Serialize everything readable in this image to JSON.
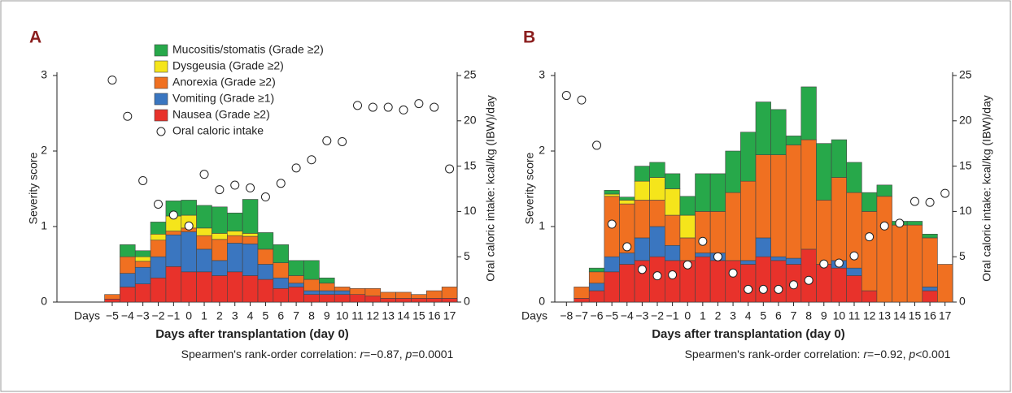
{
  "chart_data": [
    {
      "type": "stacked_bar",
      "panel_label": "A",
      "legend": true,
      "x_prefix": "Days",
      "x_label": "Days after transplantation (day 0)",
      "note": [
        "Spearmen's rank-order correlation: ",
        "r",
        "=−0.87, ",
        "p",
        "=0.0001"
      ],
      "y_label": "Severity score",
      "y2_label": "Oral caloric intake: kcal/kg (IBW)/day",
      "ylim": [
        0,
        3
      ],
      "yticks": [
        0,
        1,
        2,
        3
      ],
      "y2lim": [
        0,
        25
      ],
      "y2ticks": [
        0,
        5,
        10,
        15,
        20,
        25
      ],
      "categories": [
        null,
        null,
        null,
        "−5",
        "−4",
        "−3",
        "−2",
        "−1",
        "0",
        "1",
        "2",
        "3",
        "4",
        "5",
        "6",
        "7",
        "8",
        "9",
        "10",
        "11",
        "12",
        "13",
        "14",
        "15",
        "16",
        "17"
      ],
      "series": [
        {
          "name": "Nausea (Grade ≥2)",
          "color": "#e8322b",
          "values": [
            null,
            null,
            null,
            0.04,
            0.2,
            0.24,
            0.32,
            0.47,
            0.4,
            0.4,
            0.35,
            0.4,
            0.35,
            0.3,
            0.18,
            0.2,
            0.1,
            0.1,
            0.1,
            0.1,
            0.08,
            0.05,
            0.05,
            0.05,
            0.05,
            0.05
          ]
        },
        {
          "name": "Vomiting (Grade ≥1)",
          "color": "#3a76c0",
          "values": [
            null,
            null,
            null,
            0,
            0.18,
            0.22,
            0.28,
            0.42,
            0.53,
            0.3,
            0.2,
            0.38,
            0.42,
            0.2,
            0.14,
            0.05,
            0.05,
            0.05,
            0.05,
            0,
            0,
            0,
            0,
            0,
            0,
            0
          ]
        },
        {
          "name": "Anorexia (Grade ≥2)",
          "color": "#f07021",
          "values": [
            null,
            null,
            null,
            0.06,
            0.22,
            0.08,
            0.22,
            0.05,
            0.05,
            0.18,
            0.28,
            0.1,
            0.1,
            0.2,
            0.2,
            0.1,
            0.15,
            0.1,
            0.05,
            0.08,
            0.1,
            0.08,
            0.08,
            0.05,
            0.1,
            0.15
          ]
        },
        {
          "name": "Dysgeusia (Grade ≥2)",
          "color": "#f5e51b",
          "values": [
            null,
            null,
            null,
            0,
            0,
            0.06,
            0.08,
            0.2,
            0.17,
            0.1,
            0.08,
            0.06,
            0.04,
            0,
            0,
            0,
            0,
            0,
            0,
            0,
            0,
            0,
            0,
            0,
            0,
            0
          ]
        },
        {
          "name": "Mucositis/stomatis (Grade ≥2)",
          "color": "#27a84a",
          "values": [
            null,
            null,
            null,
            0,
            0.16,
            0.08,
            0.16,
            0.2,
            0.2,
            0.3,
            0.35,
            0.24,
            0.45,
            0.22,
            0.24,
            0.2,
            0.25,
            0.07,
            0,
            0,
            0,
            0,
            0,
            0,
            0,
            0
          ]
        },
        {
          "name": "Oral caloric intake",
          "type": "scatter",
          "axis": "y2",
          "color": "#ffffff",
          "values": [
            null,
            null,
            null,
            24.5,
            20.5,
            13.4,
            10.8,
            9.6,
            8.4,
            14.1,
            12.4,
            12.9,
            12.6,
            11.6,
            13.1,
            14.8,
            15.7,
            17.8,
            17.7,
            21.7,
            21.5,
            21.5,
            21.2,
            21.9,
            21.5,
            14.7
          ]
        }
      ]
    },
    {
      "type": "stacked_bar",
      "panel_label": "B",
      "legend": false,
      "x_prefix": "Days",
      "x_label": "Days after transplantation (day 0)",
      "note": [
        "Spearmen's rank-order correlation: ",
        "r",
        "=−0.92, ",
        "p",
        "<0.001"
      ],
      "y_label": "Severity score",
      "y2_label": "Oral caloric intake: kcal/kg (IBW)/day",
      "ylim": [
        0,
        3
      ],
      "yticks": [
        0,
        1,
        2,
        3
      ],
      "y2lim": [
        0,
        25
      ],
      "y2ticks": [
        0,
        5,
        10,
        15,
        20,
        25
      ],
      "categories": [
        "−8",
        "−7",
        "−6",
        "−5",
        "−4",
        "−3",
        "−2",
        "−1",
        "0",
        "1",
        "2",
        "3",
        "4",
        "5",
        "6",
        "7",
        "8",
        "9",
        "10",
        "11",
        "12",
        "13",
        "14",
        "15",
        "16",
        "17"
      ],
      "series": [
        {
          "color": "#e8322b",
          "values": [
            0,
            0.05,
            0.15,
            0.4,
            0.5,
            0.55,
            0.6,
            0.55,
            0.55,
            0.6,
            0.55,
            0.55,
            0.5,
            0.6,
            0.55,
            0.5,
            0.7,
            0.5,
            0.45,
            0.35,
            0.15,
            0,
            0,
            0,
            0.15,
            0
          ]
        },
        {
          "color": "#3a76c0",
          "values": [
            0,
            0,
            0.1,
            0.2,
            0.15,
            0.3,
            0.4,
            0.2,
            0,
            0.05,
            0.1,
            0,
            0.05,
            0.25,
            0.05,
            0.08,
            0,
            0,
            0.1,
            0.1,
            0,
            0,
            0,
            0,
            0.05,
            0
          ]
        },
        {
          "color": "#f07021",
          "values": [
            0,
            0.15,
            0.15,
            0.8,
            0.65,
            0.5,
            0.35,
            0.4,
            0.3,
            0.55,
            0.55,
            0.9,
            1.05,
            1.1,
            1.35,
            1.5,
            1.45,
            0.85,
            1.1,
            1.0,
            1.05,
            1.4,
            1.02,
            1.02,
            0.65,
            0.5
          ]
        },
        {
          "color": "#f5e51b",
          "values": [
            0,
            0,
            0,
            0.03,
            0.05,
            0.25,
            0.3,
            0.35,
            0.3,
            0,
            0,
            0,
            0,
            0,
            0,
            0,
            0,
            0,
            0,
            0,
            0,
            0,
            0,
            0,
            0,
            0
          ]
        },
        {
          "color": "#27a84a",
          "values": [
            0,
            0,
            0.05,
            0.05,
            0.04,
            0.2,
            0.2,
            0.2,
            0.25,
            0.5,
            0.5,
            0.55,
            0.65,
            0.7,
            0.6,
            0.12,
            0.7,
            0.75,
            0.5,
            0.4,
            0.25,
            0.15,
            0.05,
            0.05,
            0.05,
            0
          ]
        },
        {
          "type": "scatter",
          "axis": "y2",
          "color": "#ffffff",
          "values": [
            22.8,
            22.3,
            17.3,
            8.6,
            6.1,
            3.6,
            2.9,
            3.0,
            4.1,
            6.7,
            5.0,
            3.2,
            1.4,
            1.4,
            1.4,
            1.9,
            2.4,
            4.2,
            4.3,
            5.1,
            7.2,
            8.4,
            8.7,
            11.1,
            11.0,
            12.0
          ]
        }
      ]
    }
  ]
}
